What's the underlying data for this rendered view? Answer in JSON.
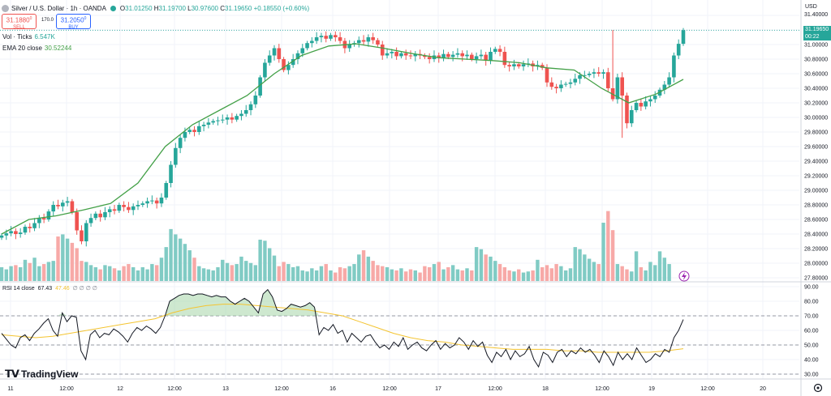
{
  "header": {
    "title": "Silver / U.S. Dollar · 1h · OANDA",
    "o_label": "O",
    "o": "31.01250",
    "h_label": "H",
    "h": "31.19700",
    "l_label": "L",
    "l": "30.97600",
    "c_label": "C",
    "c": "31.19650",
    "change": "+0.18550 (+0.60%)"
  },
  "trade": {
    "sell_price": "31.1880",
    "sell_price_sup": "0",
    "sell_label": "SELL",
    "spread": "170.0",
    "buy_price": "31.2050",
    "buy_price_sup": "0",
    "buy_label": "BUY"
  },
  "volume_legend": {
    "label": "Vol · Ticks",
    "value": "6.547K"
  },
  "ema_legend": {
    "label": "EMA 20 close",
    "value": "30.52244"
  },
  "rsi_legend": {
    "label": "RSI 14 close",
    "value": "67.43",
    "ma": "47.46",
    "extra": "∅ ∅ ∅ ∅"
  },
  "price_scale": {
    "currency": "USD",
    "last_price": "31.19650",
    "countdown": "00:22"
  },
  "branding": {
    "logo_text": "TradingView"
  },
  "colors": {
    "up": "#26a69a",
    "down": "#ef5350",
    "ema": "#43a047",
    "rsi": "#131722",
    "rsi_ma": "#f4c430",
    "up_vol": "#80cbc4",
    "down_vol": "#f7a9a7"
  },
  "chart_data": [
    {
      "type": "candlestick",
      "title": "Silver / U.S. Dollar · 1h · OANDA",
      "ylabel": "USD",
      "ylim": [
        27.75,
        31.5
      ],
      "y_ticks": [
        "31.40000",
        "31.20000",
        "31.00000",
        "30.80000",
        "30.60000",
        "30.40000",
        "30.20000",
        "30.00000",
        "29.80000",
        "29.60000",
        "29.40000",
        "29.20000",
        "29.00000",
        "28.80000",
        "28.60000",
        "28.40000",
        "28.20000",
        "28.00000",
        "27.80000"
      ],
      "x_ticks": [
        "11",
        "12:00",
        "12",
        "12:00",
        "13",
        "12:00",
        "16",
        "12:00",
        "17",
        "12:00",
        "18",
        "12:00",
        "19",
        "12:00",
        "20"
      ],
      "series": [
        {
          "name": "Price",
          "values": [
            28.38,
            28.41,
            28.44,
            28.4,
            28.42,
            28.5,
            28.48,
            28.55,
            28.62,
            28.6,
            28.71,
            28.8,
            28.78,
            28.83,
            28.85,
            28.7,
            28.45,
            28.3,
            28.55,
            28.62,
            28.68,
            28.63,
            28.7,
            28.74,
            28.72,
            28.8,
            28.77,
            28.73,
            28.78,
            28.8,
            28.82,
            28.85,
            28.86,
            28.82,
            28.9,
            29.1,
            29.35,
            29.58,
            29.72,
            29.8,
            29.83,
            29.8,
            29.88,
            29.9,
            29.93,
            29.95,
            29.96,
            29.97,
            30.0,
            29.97,
            30.02,
            30.05,
            30.1,
            30.18,
            30.3,
            30.55,
            30.75,
            30.85,
            30.95,
            30.8,
            30.65,
            30.72,
            30.8,
            30.88,
            30.95,
            31.02,
            31.05,
            31.1,
            31.12,
            31.08,
            31.13,
            31.1,
            31.05,
            30.95,
            31.0,
            31.02,
            31.06,
            31.04,
            31.1,
            31.06,
            31.0,
            30.85,
            30.88,
            30.9,
            30.84,
            30.88,
            30.85,
            30.84,
            30.87,
            30.85,
            30.83,
            30.8,
            30.85,
            30.82,
            30.87,
            30.83,
            30.86,
            30.88,
            30.84,
            30.86,
            30.8,
            30.84,
            30.86,
            30.78,
            30.9,
            30.94,
            30.9,
            30.72,
            30.7,
            30.73,
            30.7,
            30.73,
            30.74,
            30.7,
            30.72,
            30.68,
            30.48,
            30.42,
            30.4,
            30.45,
            30.46,
            30.48,
            30.53,
            30.58,
            30.58,
            30.6,
            30.62,
            30.6,
            30.62,
            30.4,
            30.25,
            30.55,
            30.3,
            29.92,
            30.1,
            30.2,
            30.15,
            30.22,
            30.25,
            30.3,
            30.38,
            30.45,
            30.55,
            30.85,
            31.01,
            31.1965
          ]
        },
        {
          "name": "EMA 20 close",
          "values": [
            28.4,
            28.6,
            28.65,
            28.73,
            28.82,
            29.1,
            29.6,
            29.9,
            30.1,
            30.3,
            30.6,
            30.85,
            30.98,
            31.01,
            30.95,
            30.88,
            30.82,
            30.8,
            30.78,
            30.75,
            30.68,
            30.65,
            30.4,
            30.2,
            30.32,
            30.52244
          ]
        }
      ]
    },
    {
      "type": "bar",
      "title": "Vol · Ticks",
      "series": [
        {
          "name": "Vol · Ticks",
          "values": [
            1.3,
            1.1,
            1.4,
            1.5,
            1.3,
            2.0,
            1.7,
            2.2,
            1.4,
            1.6,
            1.8,
            1.9,
            4.2,
            4.4,
            4.0,
            3.6,
            3.1,
            1.9,
            1.8,
            1.5,
            1.3,
            1.1,
            1.5,
            1.4,
            1.2,
            1.0,
            1.4,
            1.6,
            1.3,
            1.0,
            1.3,
            1.1,
            1.6,
            1.5,
            2.2,
            3.2,
            4.9,
            4.4,
            4.0,
            3.5,
            2.9,
            2.2,
            1.4,
            1.2,
            1.1,
            1.0,
            1.3,
            2.0,
            1.7,
            1.5,
            1.6,
            2.3,
            1.9,
            1.7,
            1.5,
            3.9,
            3.8,
            3.1,
            2.4,
            1.4,
            1.8,
            1.6,
            1.3,
            1.4,
            1.0,
            0.9,
            1.2,
            1.0,
            1.4,
            1.6,
            1.0,
            0.8,
            1.3,
            1.2,
            1.4,
            1.6,
            2.5,
            2.9,
            2.3,
            1.9,
            1.5,
            1.4,
            1.3,
            1.1,
            1.0,
            1.2,
            0.9,
            1.1,
            1.0,
            0.8,
            1.4,
            1.3,
            1.6,
            1.8,
            1.1,
            1.3,
            1.5,
            1.1,
            1.0,
            1.2,
            1.0,
            3.2,
            3.0,
            2.5,
            2.3,
            1.9,
            1.6,
            1.3,
            1.0,
            0.9,
            1.1,
            0.8,
            0.9,
            1.0,
            2.0,
            1.3,
            1.5,
            1.2,
            1.6,
            1.4,
            1.0,
            1.2,
            3.2,
            3.0,
            2.5,
            2.1,
            1.8,
            1.6,
            5.5,
            6.6,
            4.8,
            1.6,
            1.4,
            1.1,
            0.9,
            2.8,
            1.3,
            1.0,
            1.8,
            1.5,
            2.8,
            2.2,
            1.6
          ]
        }
      ]
    },
    {
      "type": "line",
      "title": "RSI 14 close",
      "ylim": [
        25,
        90
      ],
      "y_ticks": [
        "90.00",
        "80.00",
        "70.00",
        "60.00",
        "50.00",
        "40.00",
        "30.00"
      ],
      "levels": [
        70,
        50,
        30
      ],
      "series": [
        {
          "name": "RSI 14 close",
          "values": [
            58,
            54,
            50,
            48,
            55,
            57,
            53,
            58,
            61,
            65,
            68,
            60,
            56,
            72,
            66,
            70,
            69,
            46,
            40,
            57,
            60,
            55,
            58,
            57,
            61,
            59,
            56,
            52,
            58,
            62,
            60,
            63,
            61,
            58,
            62,
            70,
            80,
            82,
            84,
            85,
            85,
            84,
            85,
            85,
            84,
            83,
            84,
            83,
            83,
            80,
            78,
            80,
            82,
            80,
            76,
            72,
            85,
            88,
            83,
            74,
            73,
            75,
            78,
            77,
            76,
            77,
            79,
            76,
            57,
            62,
            60,
            64,
            58,
            60,
            52,
            58,
            55,
            52,
            56,
            57,
            52,
            48,
            50,
            47,
            52,
            49,
            55,
            47,
            50,
            52,
            48,
            46,
            50,
            53,
            47,
            51,
            48,
            50,
            55,
            52,
            47,
            53,
            49,
            52,
            43,
            38,
            45,
            42,
            47,
            40,
            46,
            42,
            44,
            49,
            40,
            35,
            45,
            43,
            38,
            45,
            47,
            42,
            46,
            44,
            48,
            45,
            47,
            43,
            38,
            46,
            42,
            36,
            45,
            40,
            44,
            40,
            48,
            43,
            38,
            40,
            44,
            42,
            47,
            45,
            55,
            60,
            67.43
          ]
        },
        {
          "name": "RSI MA",
          "values": [
            57,
            56,
            55,
            56,
            58,
            60,
            62,
            64,
            66,
            68,
            72,
            75,
            77,
            78,
            78,
            77,
            76,
            75,
            74,
            72,
            70,
            66,
            62,
            58,
            55,
            53,
            52,
            50,
            49,
            48,
            47,
            47,
            47,
            46,
            46,
            45,
            45,
            45,
            45,
            46,
            47.46
          ]
        }
      ]
    }
  ]
}
